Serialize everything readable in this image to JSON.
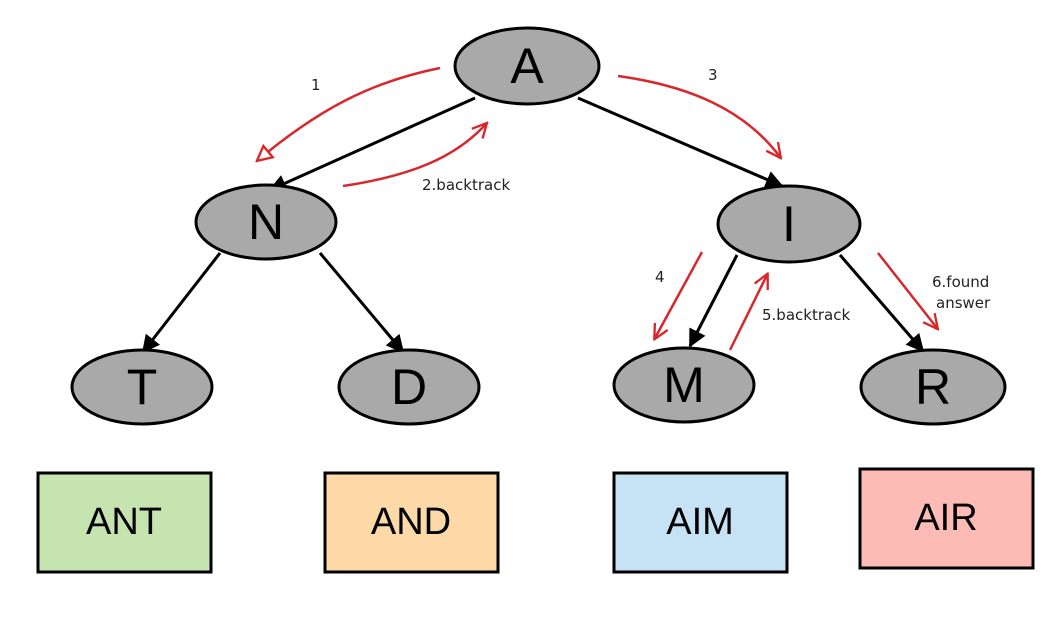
{
  "nodes": {
    "a": "A",
    "n": "N",
    "i": "I",
    "t": "T",
    "d": "D",
    "m": "M",
    "r": "R"
  },
  "steps": {
    "s1": "1",
    "s2": "2.backtrack",
    "s3": "3",
    "s4": "4",
    "s5": "5.backtrack",
    "s6_line1": "6.found",
    "s6_line2": "answer"
  },
  "words": {
    "ant": "ANT",
    "and": "AND",
    "aim": "AIM",
    "air": "AIR"
  },
  "colors": {
    "node_fill": "#a9a9a9",
    "arrow": "#d9262b",
    "ant_box": "#c6e4b0",
    "and_box": "#fdd9a8",
    "aim_box": "#c6e3f5",
    "air_box": "#fcbcb5"
  }
}
